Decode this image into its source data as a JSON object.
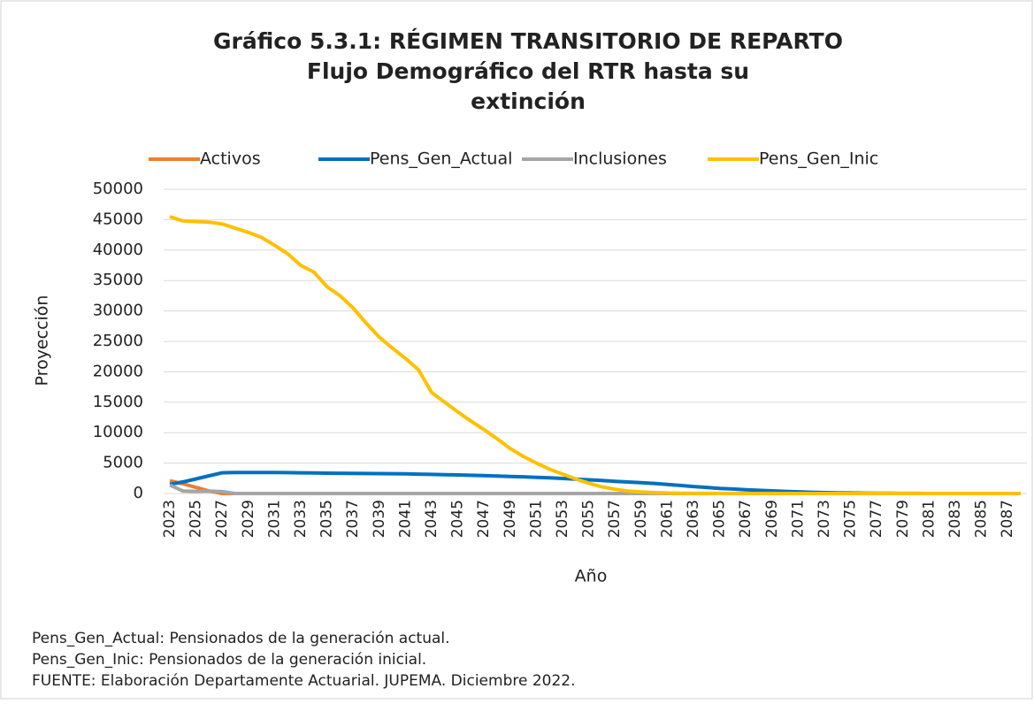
{
  "chart_data": {
    "type": "line",
    "title": [
      "Gráfico 5.3.1: RÉGIMEN TRANSITORIO DE REPARTO",
      "Flujo Demográfico del RTR hasta su",
      "extinción"
    ],
    "xlabel": "Año",
    "ylabel": "Proyección",
    "categories": [
      "2023",
      null,
      "2025",
      null,
      "2027",
      null,
      "2029",
      null,
      "2031",
      null,
      "2033",
      null,
      "2035",
      null,
      "2037",
      null,
      "2039",
      null,
      "2041",
      null,
      "2043",
      null,
      "2045",
      null,
      "2047",
      null,
      "2049",
      null,
      "2051",
      null,
      "2053",
      null,
      "2055",
      null,
      "2057",
      null,
      "2059",
      null,
      "2061",
      null,
      "2063",
      null,
      "2065",
      null,
      "2067",
      null,
      "2069",
      null,
      "2071",
      null,
      "2073",
      null,
      "2075",
      null,
      "2077",
      null,
      "2079",
      null,
      "2081",
      null,
      "2083",
      null,
      "2085",
      null,
      "2087",
      null
    ],
    "series": [
      {
        "name": "Activos",
        "color": "#ed7d31",
        "values": [
          2100,
          1600,
          1000,
          400,
          0,
          0,
          0,
          0,
          0,
          0,
          0,
          0,
          0,
          0,
          0,
          0,
          0,
          0,
          0,
          0,
          0,
          0,
          0,
          0,
          0,
          0,
          0,
          0,
          0,
          0,
          0,
          0,
          0,
          0,
          0,
          0,
          0,
          0,
          0,
          0,
          0,
          0,
          0,
          0,
          0,
          0,
          0,
          0,
          0,
          0,
          0,
          0,
          0,
          0,
          0,
          0,
          0,
          0,
          0,
          0,
          0,
          0,
          0,
          0,
          0,
          0
        ]
      },
      {
        "name": "Pens_Gen_Actual",
        "color": "#0070c0",
        "values": [
          1500,
          1900,
          2400,
          2900,
          3400,
          3450,
          3450,
          3450,
          3450,
          3430,
          3400,
          3380,
          3350,
          3330,
          3310,
          3290,
          3270,
          3250,
          3220,
          3180,
          3140,
          3100,
          3050,
          2990,
          2930,
          2870,
          2810,
          2750,
          2660,
          2570,
          2470,
          2360,
          2250,
          2130,
          2010,
          1890,
          1770,
          1650,
          1480,
          1320,
          1150,
          1000,
          850,
          740,
          630,
          530,
          440,
          350,
          270,
          200,
          140,
          100,
          80,
          60,
          40,
          30,
          20,
          10,
          0,
          0,
          0,
          0,
          0,
          0,
          0,
          0
        ]
      },
      {
        "name": "Inclusiones",
        "color": "#a5a5a5",
        "values": [
          1400,
          400,
          350,
          400,
          300,
          0,
          0,
          0,
          0,
          0,
          0,
          0,
          0,
          0,
          0,
          0,
          0,
          0,
          0,
          0,
          0,
          0,
          0,
          0,
          0,
          0,
          0,
          0,
          0,
          0,
          0,
          0,
          0,
          0,
          0,
          0,
          0,
          0,
          0,
          0,
          0,
          0,
          0,
          0,
          0,
          0,
          0,
          0,
          0,
          0,
          0,
          0,
          0,
          0,
          0,
          0,
          0,
          0,
          0,
          0,
          0,
          0,
          0,
          0,
          0,
          0
        ]
      },
      {
        "name": "Pens_Gen_Inic",
        "color": "#ffc000",
        "values": [
          45500,
          44800,
          44700,
          44600,
          44300,
          43600,
          42900,
          42100,
          40800,
          39400,
          37500,
          36400,
          34000,
          32500,
          30500,
          28000,
          25700,
          23900,
          22200,
          20300,
          16600,
          15000,
          13400,
          11900,
          10500,
          9000,
          7400,
          6100,
          5000,
          4000,
          3200,
          2400,
          1700,
          1100,
          700,
          400,
          250,
          150,
          80,
          40,
          20,
          10,
          5,
          0,
          0,
          0,
          0,
          0,
          0,
          0,
          0,
          0,
          0,
          0,
          0,
          0,
          0,
          0,
          0,
          0,
          0,
          0,
          0,
          0,
          0,
          0
        ]
      }
    ],
    "ylim": [
      0,
      50000
    ],
    "yticks": [
      0,
      5000,
      10000,
      15000,
      20000,
      25000,
      30000,
      35000,
      40000,
      45000,
      50000
    ],
    "grid": true,
    "legend": "top",
    "notes": [
      "Pens_Gen_Actual: Pensionados de la generación actual.",
      "Pens_Gen_Inic: Pensionados de la generación inicial.",
      "FUENTE: Elaboración Departamente Actuarial. JUPEMA. Diciembre 2022."
    ]
  }
}
